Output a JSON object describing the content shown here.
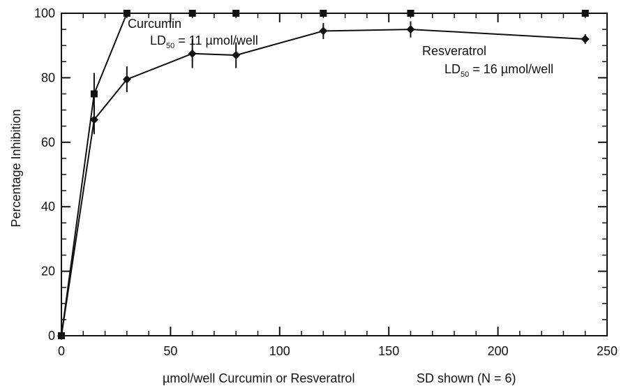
{
  "chart_data": {
    "type": "line",
    "title": "",
    "xlabel": "µmol/well Curcumin or Resveratrol",
    "xlabel_note": "SD shown (N = 6)",
    "ylabel": "Percentage Inhibition",
    "xlim": [
      0,
      250
    ],
    "ylim": [
      0,
      100
    ],
    "x_ticks": [
      0,
      50,
      100,
      150,
      200,
      250
    ],
    "x_tick_labels": [
      "0",
      "50",
      "100",
      "150",
      "200",
      "250"
    ],
    "y_ticks": [
      0,
      20,
      40,
      60,
      80,
      100
    ],
    "y_tick_labels": [
      "0",
      "20",
      "40",
      "60",
      "80",
      "100"
    ],
    "grid": false,
    "legend": "none",
    "series": [
      {
        "name": "Curcumin",
        "marker": "square",
        "color": "#111111",
        "x": [
          0,
          15,
          30,
          60,
          80,
          120,
          160,
          240
        ],
        "y": [
          0,
          75,
          100,
          100,
          100,
          100,
          100,
          100
        ],
        "err": [
          0,
          6.5,
          0,
          0,
          0,
          0,
          0,
          0
        ],
        "label_lines": [
          {
            "prefix": "Curcumin",
            "sub": "",
            "suffix": ""
          },
          {
            "prefix": "LD",
            "sub": "50",
            "suffix": " = 11 µmol/well"
          }
        ]
      },
      {
        "name": "Resveratrol",
        "marker": "diamond",
        "color": "#111111",
        "x": [
          0,
          15,
          30,
          60,
          80,
          120,
          160,
          240
        ],
        "y": [
          0,
          67,
          79.5,
          87.5,
          87,
          94.5,
          95,
          92
        ],
        "err": [
          0,
          4.5,
          4,
          4.5,
          4,
          2.5,
          2.5,
          1.5
        ],
        "label_lines": [
          {
            "prefix": "Resveratrol",
            "sub": "",
            "suffix": ""
          },
          {
            "prefix": "LD",
            "sub": "50",
            "suffix": " = 16 µmol/well"
          }
        ]
      }
    ]
  }
}
